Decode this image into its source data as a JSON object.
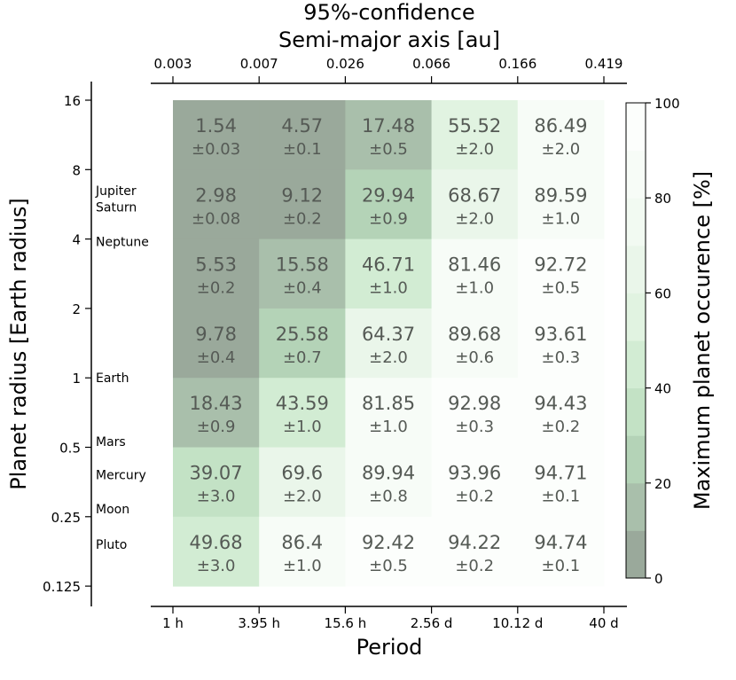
{
  "chart_data": {
    "type": "heatmap",
    "title_line1": "95%-confidence",
    "top_axis_label": "Semi-major axis [au]",
    "top_ticks": [
      "0.003",
      "0.007",
      "0.026",
      "0.066",
      "0.166",
      "0.419"
    ],
    "xlabel": "Period",
    "x_ticks": [
      "1 h",
      "3.95 h",
      "15.6 h",
      "2.56 d",
      "10.12 d",
      "40 d"
    ],
    "ylabel": "Planet radius [Earth radius]",
    "y_ticks": [
      "16",
      "8",
      "4",
      "2",
      "1",
      "0.5",
      "0.25",
      "0.125"
    ],
    "planet_labels": [
      {
        "name": "Jupiter",
        "radius": 6.5
      },
      {
        "name": "Saturn",
        "radius": 5.5
      },
      {
        "name": "Neptune",
        "radius": 3.9
      },
      {
        "name": "Earth",
        "radius": 1.0
      },
      {
        "name": "Mars",
        "radius": 0.53
      },
      {
        "name": "Mercury",
        "radius": 0.38
      },
      {
        "name": "Moon",
        "radius": 0.27
      },
      {
        "name": "Pluto",
        "radius": 0.19
      }
    ],
    "colorbar_label": "Maximum planet occurence [%]",
    "colorbar_ticks": [
      "0",
      "20",
      "40",
      "60",
      "80",
      "100"
    ],
    "colorbar_range": [
      0,
      100
    ],
    "colors": {
      "low": "#9aa99b",
      "high": "#ffffff",
      "bands": [
        "#9aa99b",
        "#a9bfab",
        "#b4d3b7",
        "#c3e2c5",
        "#d2ecd3",
        "#e1f3e1",
        "#eaf6ea",
        "#f2faf2",
        "#f7fcf7",
        "#fcfefc"
      ]
    },
    "rows_top_to_bottom": [
      {
        "values": [
          "1.54",
          "4.57",
          "17.48",
          "55.52",
          "86.49"
        ],
        "errors": [
          "±0.03",
          "±0.1",
          "±0.5",
          "±2.0",
          "±2.0"
        ]
      },
      {
        "values": [
          "2.98",
          "9.12",
          "29.94",
          "68.67",
          "89.59"
        ],
        "errors": [
          "±0.08",
          "±0.2",
          "±0.9",
          "±2.0",
          "±1.0"
        ]
      },
      {
        "values": [
          "5.53",
          "15.58",
          "46.71",
          "81.46",
          "92.72"
        ],
        "errors": [
          "±0.2",
          "±0.4",
          "±1.0",
          "±1.0",
          "±0.5"
        ]
      },
      {
        "values": [
          "9.78",
          "25.58",
          "64.37",
          "89.68",
          "93.61"
        ],
        "errors": [
          "±0.4",
          "±0.7",
          "±2.0",
          "±0.6",
          "±0.3"
        ]
      },
      {
        "values": [
          "18.43",
          "43.59",
          "81.85",
          "92.98",
          "94.43"
        ],
        "errors": [
          "±0.9",
          "±1.0",
          "±1.0",
          "±0.3",
          "±0.2"
        ]
      },
      {
        "values": [
          "39.07",
          "69.6",
          "89.94",
          "93.96",
          "94.71"
        ],
        "errors": [
          "±3.0",
          "±2.0",
          "±0.8",
          "±0.2",
          "±0.1"
        ]
      },
      {
        "values": [
          "49.68",
          "86.4",
          "92.42",
          "94.22",
          "94.74"
        ],
        "errors": [
          "±3.0",
          "±1.0",
          "±0.5",
          "±0.2",
          "±0.1"
        ]
      }
    ]
  }
}
